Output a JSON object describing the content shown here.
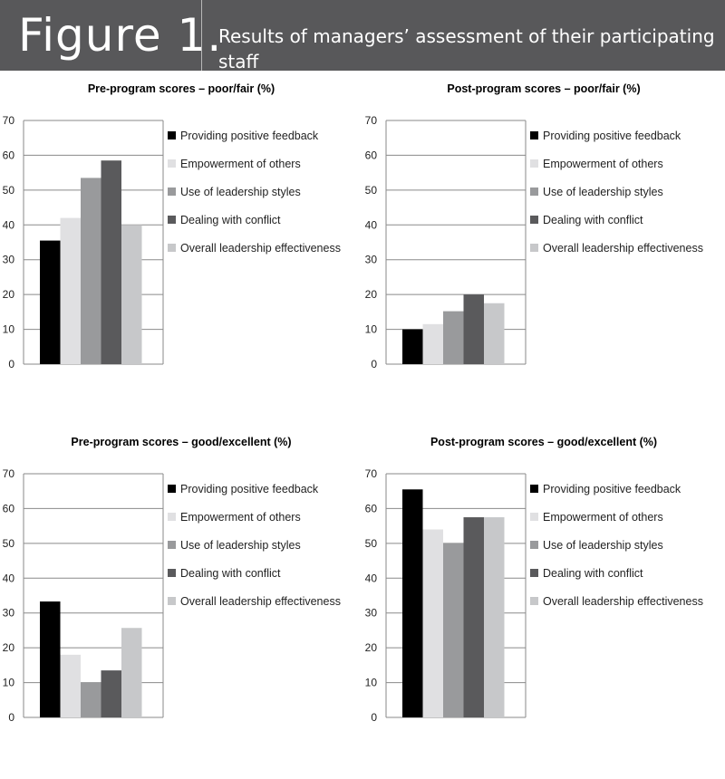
{
  "header": {
    "figure_label": "Figure 1.",
    "subtitle": "Results of managers’ assessment of their participating staff"
  },
  "legend": [
    {
      "label": "Providing positive feedback",
      "color": "#000000"
    },
    {
      "label": "Empowerment of others",
      "color": "#e0e0e2"
    },
    {
      "label": "Use of leadership styles",
      "color": "#999a9c"
    },
    {
      "label": "Dealing with conflict",
      "color": "#5a5a5c"
    },
    {
      "label": "Overall leadership effectiveness",
      "color": "#c7c8ca"
    }
  ],
  "chart_data": [
    {
      "type": "bar",
      "title": "Pre-program scores – poor/fair (%)",
      "categories": [
        "Providing positive feedback",
        "Empowerment of others",
        "Use of leadership styles",
        "Dealing with conflict",
        "Overall leadership effectiveness"
      ],
      "values": [
        35.5,
        42,
        53.5,
        58.5,
        40
      ],
      "ylim": [
        0,
        70
      ],
      "yticks": [
        0,
        10,
        20,
        30,
        40,
        50,
        60,
        70
      ],
      "grid": true,
      "legend_position": "right"
    },
    {
      "type": "bar",
      "title": "Post-program scores – poor/fair (%)",
      "categories": [
        "Providing positive feedback",
        "Empowerment of others",
        "Use of leadership styles",
        "Dealing with conflict",
        "Overall leadership effectiveness"
      ],
      "values": [
        10,
        11.5,
        15.2,
        20,
        17.5
      ],
      "ylim": [
        0,
        70
      ],
      "yticks": [
        0,
        10,
        20,
        30,
        40,
        50,
        60,
        70
      ],
      "grid": true,
      "legend_position": "right"
    },
    {
      "type": "bar",
      "title": "Pre-program scores – good/excellent (%)",
      "categories": [
        "Providing positive feedback",
        "Empowerment of others",
        "Use of leadership styles",
        "Dealing with conflict",
        "Overall leadership effectiveness"
      ],
      "values": [
        33.3,
        18,
        10,
        13.5,
        25.7
      ],
      "ylim": [
        0,
        70
      ],
      "yticks": [
        0,
        10,
        20,
        30,
        40,
        50,
        60,
        70
      ],
      "grid": true,
      "legend_position": "right"
    },
    {
      "type": "bar",
      "title": "Post-program scores – good/excellent (%)",
      "categories": [
        "Providing positive feedback",
        "Empowerment of others",
        "Use of leadership styles",
        "Dealing with conflict",
        "Overall leadership effectiveness"
      ],
      "values": [
        65.5,
        54,
        50,
        57.5,
        57.5
      ],
      "ylim": [
        0,
        70
      ],
      "yticks": [
        0,
        10,
        20,
        30,
        40,
        50,
        60,
        70
      ],
      "grid": true,
      "legend_position": "right"
    }
  ]
}
